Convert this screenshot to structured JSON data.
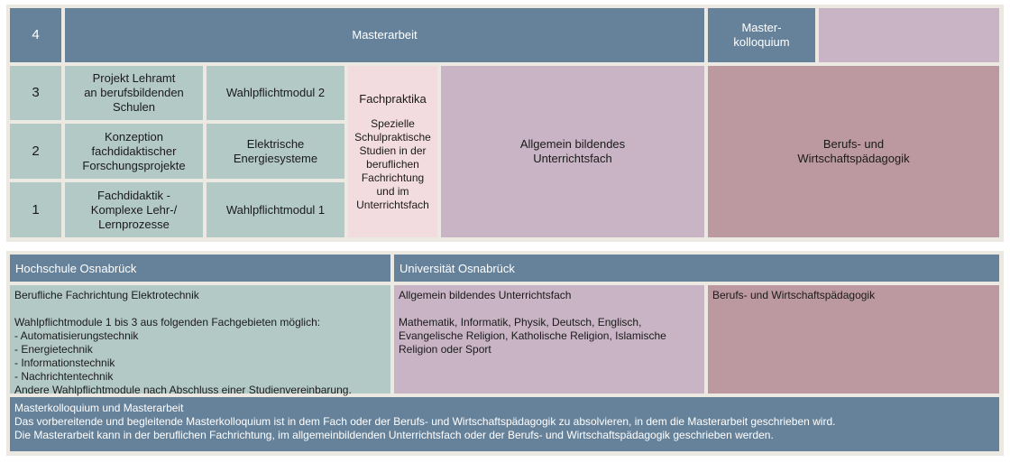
{
  "grid": {
    "semester_labels": [
      "4",
      "3",
      "2",
      "1"
    ],
    "masterarbeit": "Masterarbeit",
    "masterkolloquium": "Master-\nkolloquium",
    "projekt": "Projekt Lehramt\nan berufsbildenden\nSchulen",
    "konzeption": "Konzeption\nfachdidaktischer\nForschungsprojekte",
    "fachdidaktik": "Fachdidaktik -\nKomplexe Lehr-/\nLernprozesse",
    "wahlpflicht2": "Wahlpflichtmodul 2",
    "elektrische": "Elektrische\nEnergiesysteme",
    "wahlpflicht1": "Wahlpflichtmodul 1",
    "fachpraktika_title": "Fachpraktika",
    "fachpraktika_text": "Spezielle\nSchulpraktische\nStudien in der\nberuflichen\nFachrichtung\nund im\nUnterrichtsfach",
    "allgemein": "Allgemein bildendes\nUnterrichtsfach",
    "berufs": "Berufs- und\nWirtschaftspädagogik"
  },
  "legend": {
    "hs_header": "Hochschule Osnabrück",
    "uni_header": "Universität Osnabrück",
    "hs_text": "Berufliche Fachrichtung Elektrotechnik\n\nWahlpflichtmodule 1 bis 3 aus folgenden Fachgebieten möglich:\n - Automatisierungstechnik\n - Energietechnik\n - Informationstechnik\n - Nachrichtentechnik\nAndere Wahlpflichtmodule nach Abschluss einer Studienvereinbarung.",
    "uni_fach_text": "Allgemein bildendes Unterrichtsfach\n\nMathematik, Informatik, Physik, Deutsch, Englisch,\nEvangelische Religion, Katholische Religion, Islamische\nReligion oder Sport",
    "uni_bwp_text": "Berufs- und Wirtschaftspädagogik",
    "master_text": "Masterkolloquium und Masterarbeit\nDas vorbereitende und begleitende Masterkolloquium ist in dem Fach oder der Berufs- und Wirtschaftspädagogik zu absolvieren, in dem die Masterarbeit geschrieben wird.\nDie Masterarbeit kann in der beruflichen Fachrichtung, im allgemeinbildenden Unterrichtsfach oder der Berufs- und Wirtschaftspädagogik geschrieben werden."
  },
  "colors": {
    "blue": "#66829a",
    "teal": "#b3c9c6",
    "pink": "#f3dcdf",
    "lilac": "#c8b4c4",
    "rose": "#bc99a1"
  }
}
